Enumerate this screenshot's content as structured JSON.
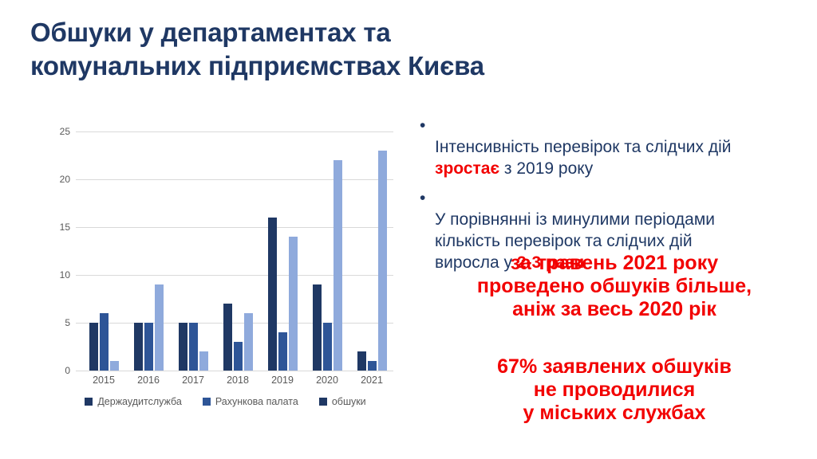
{
  "slide": {
    "title": "Обшуки у департаментах та\nкомунальних підприємствах Києва",
    "title_color": "#1f3864",
    "highlight_color": "#f20000",
    "background_color": "#ffffff"
  },
  "bullets": [
    {
      "marker": "•",
      "prefix": "Інтенсивність перевірок та слідчих дій\n",
      "highlight": "зростає",
      "suffix": " з 2019 року"
    },
    {
      "marker": "•",
      "prefix": "У порівнянні із минулими періодами\nкількість перевірок та слідчих дій\nвиросла у ",
      "highlight": "2-3 рази",
      "suffix": ""
    }
  ],
  "callouts": [
    {
      "text": "за травень 2021 року\nпроведено обшуків більше,\nаніж за весь 2020 рік"
    },
    {
      "text": "67% заявлених обшуків\nне проводилися\nу міських службах"
    }
  ],
  "chart_data": {
    "type": "bar",
    "title": "",
    "xlabel": "",
    "ylabel": "",
    "categories": [
      "2015",
      "2016",
      "2017",
      "2018",
      "2019",
      "2020",
      "2021"
    ],
    "series": [
      {
        "name": "Держаудитслужба",
        "color": "#1f3864",
        "values": [
          5,
          5,
          5,
          7,
          16,
          9,
          2
        ]
      },
      {
        "name": "Рахункова палата",
        "color": "#2e5597",
        "values": [
          6,
          5,
          5,
          3,
          4,
          5,
          1
        ]
      },
      {
        "name": "обшуки",
        "color": "#8faadc",
        "values": [
          1,
          9,
          2,
          6,
          14,
          22,
          23
        ]
      }
    ],
    "legend_marker_colors": [
      "#1f3864",
      "#2e5597",
      "#1f3864"
    ],
    "y_ticks": [
      0,
      5,
      10,
      15,
      20,
      25
    ],
    "ylim": [
      0,
      25
    ],
    "grid": true,
    "grid_color": "#d9d9d9",
    "axis_label_color": "#595959",
    "legend_position": "bottom"
  }
}
